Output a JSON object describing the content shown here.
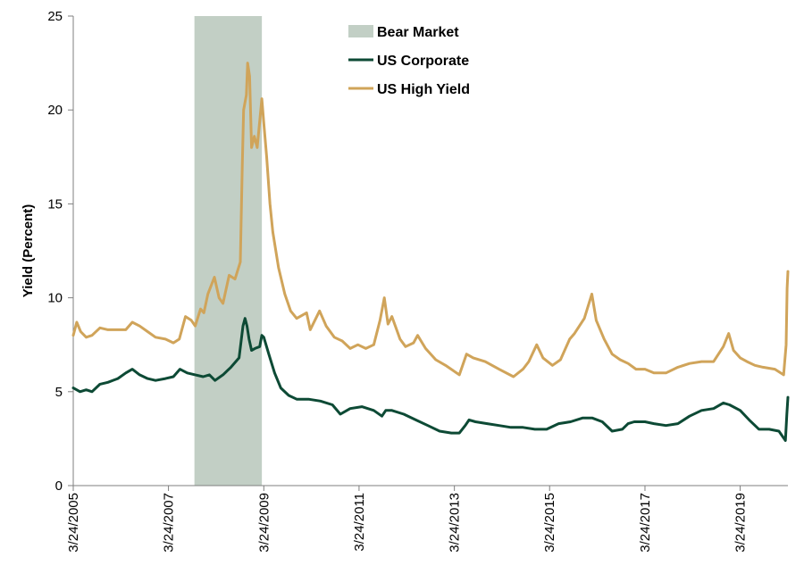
{
  "chart_data": {
    "type": "line",
    "ylabel": "Yield (Percent)",
    "xlabel": "",
    "ylim": [
      0,
      25
    ],
    "yticks": [
      0,
      5,
      10,
      15,
      20,
      25
    ],
    "xlim": [
      "2005-03-24",
      "2020-03-24"
    ],
    "xticks": [
      {
        "date": "2005-03-24",
        "label": "3/24/2005"
      },
      {
        "date": "2007-03-24",
        "label": "3/24/2007"
      },
      {
        "date": "2009-03-24",
        "label": "3/24/2009"
      },
      {
        "date": "2011-03-24",
        "label": "3/24/2011"
      },
      {
        "date": "2013-03-24",
        "label": "3/24/2013"
      },
      {
        "date": "2015-03-24",
        "label": "3/24/2015"
      },
      {
        "date": "2017-03-24",
        "label": "3/24/2017"
      },
      {
        "date": "2019-03-24",
        "label": "3/24/2019"
      }
    ],
    "grid": false,
    "legend_position": "top-center",
    "bear_market": {
      "name": "Bear Market",
      "start": "2007-10-09",
      "end": "2009-03-09",
      "color": "#c2cfc5"
    },
    "series": [
      {
        "name": "US Corporate",
        "color": "#0d4a35",
        "points": [
          [
            "2005-03-24",
            5.2
          ],
          [
            "2005-05-15",
            5.0
          ],
          [
            "2005-07-01",
            5.1
          ],
          [
            "2005-08-15",
            5.0
          ],
          [
            "2005-10-15",
            5.4
          ],
          [
            "2005-12-15",
            5.5
          ],
          [
            "2006-03-01",
            5.7
          ],
          [
            "2006-05-01",
            6.0
          ],
          [
            "2006-06-20",
            6.2
          ],
          [
            "2006-08-15",
            5.9
          ],
          [
            "2006-10-15",
            5.7
          ],
          [
            "2006-12-15",
            5.6
          ],
          [
            "2007-03-01",
            5.7
          ],
          [
            "2007-05-01",
            5.8
          ],
          [
            "2007-06-20",
            6.2
          ],
          [
            "2007-08-15",
            6.0
          ],
          [
            "2007-10-15",
            5.9
          ],
          [
            "2007-12-15",
            5.8
          ],
          [
            "2008-02-01",
            5.9
          ],
          [
            "2008-03-15",
            5.6
          ],
          [
            "2008-05-15",
            5.9
          ],
          [
            "2008-07-15",
            6.3
          ],
          [
            "2008-09-15",
            6.8
          ],
          [
            "2008-10-15",
            8.5
          ],
          [
            "2008-10-31",
            8.9
          ],
          [
            "2008-11-15",
            8.5
          ],
          [
            "2008-12-01",
            7.8
          ],
          [
            "2008-12-20",
            7.2
          ],
          [
            "2009-01-15",
            7.3
          ],
          [
            "2009-02-20",
            7.4
          ],
          [
            "2009-03-09",
            8.0
          ],
          [
            "2009-03-24",
            7.9
          ],
          [
            "2009-05-01",
            7.0
          ],
          [
            "2009-06-15",
            6.0
          ],
          [
            "2009-08-01",
            5.2
          ],
          [
            "2009-10-01",
            4.8
          ],
          [
            "2009-12-01",
            4.6
          ],
          [
            "2010-03-01",
            4.6
          ],
          [
            "2010-06-01",
            4.5
          ],
          [
            "2010-09-01",
            4.3
          ],
          [
            "2010-11-01",
            3.8
          ],
          [
            "2011-01-15",
            4.1
          ],
          [
            "2011-04-15",
            4.2
          ],
          [
            "2011-07-15",
            4.0
          ],
          [
            "2011-09-15",
            3.7
          ],
          [
            "2011-10-15",
            4.0
          ],
          [
            "2011-12-01",
            4.0
          ],
          [
            "2012-03-01",
            3.8
          ],
          [
            "2012-06-01",
            3.5
          ],
          [
            "2012-09-01",
            3.2
          ],
          [
            "2012-12-01",
            2.9
          ],
          [
            "2013-03-01",
            2.8
          ],
          [
            "2013-05-01",
            2.8
          ],
          [
            "2013-06-15",
            3.2
          ],
          [
            "2013-07-15",
            3.5
          ],
          [
            "2013-09-01",
            3.4
          ],
          [
            "2013-12-01",
            3.3
          ],
          [
            "2014-03-01",
            3.2
          ],
          [
            "2014-06-01",
            3.1
          ],
          [
            "2014-09-01",
            3.1
          ],
          [
            "2014-12-01",
            3.0
          ],
          [
            "2015-03-01",
            3.0
          ],
          [
            "2015-06-01",
            3.3
          ],
          [
            "2015-09-01",
            3.4
          ],
          [
            "2015-12-01",
            3.6
          ],
          [
            "2016-02-15",
            3.6
          ],
          [
            "2016-05-01",
            3.4
          ],
          [
            "2016-07-15",
            2.9
          ],
          [
            "2016-10-01",
            3.0
          ],
          [
            "2016-11-15",
            3.3
          ],
          [
            "2017-01-01",
            3.4
          ],
          [
            "2017-03-24",
            3.4
          ],
          [
            "2017-06-01",
            3.3
          ],
          [
            "2017-09-01",
            3.2
          ],
          [
            "2017-12-01",
            3.3
          ],
          [
            "2018-03-01",
            3.7
          ],
          [
            "2018-06-01",
            4.0
          ],
          [
            "2018-09-01",
            4.1
          ],
          [
            "2018-11-15",
            4.4
          ],
          [
            "2019-01-01",
            4.3
          ],
          [
            "2019-03-24",
            4.0
          ],
          [
            "2019-06-01",
            3.5
          ],
          [
            "2019-08-15",
            3.0
          ],
          [
            "2019-11-01",
            3.0
          ],
          [
            "2020-01-15",
            2.9
          ],
          [
            "2020-03-05",
            2.4
          ],
          [
            "2020-03-16",
            3.8
          ],
          [
            "2020-03-24",
            4.7
          ]
        ]
      },
      {
        "name": "US High Yield",
        "color": "#d0a45a",
        "points": [
          [
            "2005-03-24",
            8.0
          ],
          [
            "2005-04-20",
            8.7
          ],
          [
            "2005-05-20",
            8.2
          ],
          [
            "2005-07-01",
            7.9
          ],
          [
            "2005-08-15",
            8.0
          ],
          [
            "2005-10-15",
            8.4
          ],
          [
            "2005-12-15",
            8.3
          ],
          [
            "2006-03-01",
            8.3
          ],
          [
            "2006-05-01",
            8.3
          ],
          [
            "2006-06-20",
            8.7
          ],
          [
            "2006-08-15",
            8.5
          ],
          [
            "2006-10-15",
            8.2
          ],
          [
            "2006-12-15",
            7.9
          ],
          [
            "2007-03-01",
            7.8
          ],
          [
            "2007-05-01",
            7.6
          ],
          [
            "2007-06-15",
            7.8
          ],
          [
            "2007-08-01",
            9.0
          ],
          [
            "2007-09-15",
            8.8
          ],
          [
            "2007-10-15",
            8.5
          ],
          [
            "2007-11-25",
            9.4
          ],
          [
            "2007-12-20",
            9.2
          ],
          [
            "2008-01-20",
            10.2
          ],
          [
            "2008-03-10",
            11.1
          ],
          [
            "2008-04-15",
            10.0
          ],
          [
            "2008-05-15",
            9.7
          ],
          [
            "2008-07-01",
            11.2
          ],
          [
            "2008-08-15",
            11.0
          ],
          [
            "2008-09-25",
            11.9
          ],
          [
            "2008-10-10",
            17.0
          ],
          [
            "2008-10-20",
            20.0
          ],
          [
            "2008-11-10",
            20.8
          ],
          [
            "2008-11-20",
            22.5
          ],
          [
            "2008-12-05",
            21.8
          ],
          [
            "2008-12-20",
            18.0
          ],
          [
            "2009-01-10",
            18.6
          ],
          [
            "2009-02-01",
            18.0
          ],
          [
            "2009-03-09",
            20.6
          ],
          [
            "2009-03-24",
            19.3
          ],
          [
            "2009-04-15",
            17.5
          ],
          [
            "2009-05-10",
            15.0
          ],
          [
            "2009-06-01",
            13.5
          ],
          [
            "2009-07-15",
            11.6
          ],
          [
            "2009-09-01",
            10.2
          ],
          [
            "2009-10-15",
            9.3
          ],
          [
            "2009-12-01",
            8.9
          ],
          [
            "2010-02-15",
            9.2
          ],
          [
            "2010-03-15",
            8.3
          ],
          [
            "2010-05-25",
            9.3
          ],
          [
            "2010-07-15",
            8.5
          ],
          [
            "2010-09-15",
            7.9
          ],
          [
            "2010-11-15",
            7.7
          ],
          [
            "2011-01-15",
            7.3
          ],
          [
            "2011-03-15",
            7.5
          ],
          [
            "2011-05-15",
            7.3
          ],
          [
            "2011-07-15",
            7.5
          ],
          [
            "2011-09-01",
            8.8
          ],
          [
            "2011-10-04",
            10.0
          ],
          [
            "2011-11-01",
            8.6
          ],
          [
            "2011-12-01",
            9.0
          ],
          [
            "2012-02-01",
            7.8
          ],
          [
            "2012-03-15",
            7.4
          ],
          [
            "2012-05-15",
            7.6
          ],
          [
            "2012-06-15",
            8.0
          ],
          [
            "2012-08-15",
            7.3
          ],
          [
            "2012-11-01",
            6.7
          ],
          [
            "2013-01-15",
            6.4
          ],
          [
            "2013-05-01",
            5.9
          ],
          [
            "2013-06-25",
            7.0
          ],
          [
            "2013-08-15",
            6.8
          ],
          [
            "2013-11-15",
            6.6
          ],
          [
            "2014-03-01",
            6.2
          ],
          [
            "2014-06-20",
            5.8
          ],
          [
            "2014-09-01",
            6.2
          ],
          [
            "2014-10-15",
            6.6
          ],
          [
            "2014-12-15",
            7.5
          ],
          [
            "2015-02-01",
            6.8
          ],
          [
            "2015-04-15",
            6.4
          ],
          [
            "2015-06-15",
            6.7
          ],
          [
            "2015-08-25",
            7.8
          ],
          [
            "2015-10-01",
            8.1
          ],
          [
            "2015-12-15",
            8.9
          ],
          [
            "2016-02-11",
            10.2
          ],
          [
            "2016-03-15",
            8.8
          ],
          [
            "2016-05-15",
            7.8
          ],
          [
            "2016-07-15",
            7.0
          ],
          [
            "2016-09-15",
            6.7
          ],
          [
            "2016-11-15",
            6.5
          ],
          [
            "2017-01-15",
            6.2
          ],
          [
            "2017-03-24",
            6.2
          ],
          [
            "2017-06-01",
            6.0
          ],
          [
            "2017-09-01",
            6.0
          ],
          [
            "2017-12-01",
            6.3
          ],
          [
            "2018-03-01",
            6.5
          ],
          [
            "2018-06-01",
            6.6
          ],
          [
            "2018-09-01",
            6.6
          ],
          [
            "2018-11-15",
            7.4
          ],
          [
            "2018-12-26",
            8.1
          ],
          [
            "2019-02-01",
            7.2
          ],
          [
            "2019-03-24",
            6.8
          ],
          [
            "2019-05-15",
            6.6
          ],
          [
            "2019-07-15",
            6.4
          ],
          [
            "2019-09-15",
            6.3
          ],
          [
            "2019-12-15",
            6.2
          ],
          [
            "2020-02-20",
            5.9
          ],
          [
            "2020-03-10",
            7.5
          ],
          [
            "2020-03-18",
            10.5
          ],
          [
            "2020-03-24",
            11.4
          ]
        ]
      }
    ]
  }
}
